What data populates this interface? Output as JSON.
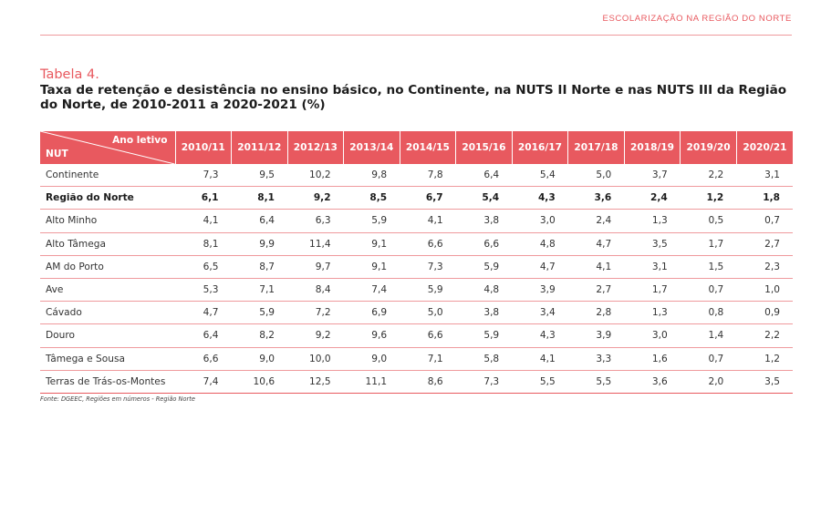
{
  "running_header": "ESCOLARIZAÇÃO NA REGIÃO DO NORTE",
  "table_number": "Tabela 4.",
  "table_title": "Taxa de retenção e desistência no ensino básico, no Continente, na NUTS II Norte e nas NUTS III da Região do Norte, de 2010-2011 a 2020-2021 (%)",
  "table": {
    "corner_top": "Ano letivo",
    "corner_bottom": "NUT",
    "years": [
      "2010/11",
      "2011/12",
      "2012/13",
      "2013/14",
      "2014/15",
      "2015/16",
      "2016/17",
      "2017/18",
      "2018/19",
      "2019/20",
      "2020/21"
    ],
    "rows": [
      {
        "nut": "Continente",
        "values": [
          "7,3",
          "9,5",
          "10,2",
          "9,8",
          "7,8",
          "6,4",
          "5,4",
          "5,0",
          "3,7",
          "2,2",
          "3,1"
        ],
        "bold": false
      },
      {
        "nut": "Região do Norte",
        "values": [
          "6,1",
          "8,1",
          "9,2",
          "8,5",
          "6,7",
          "5,4",
          "4,3",
          "3,6",
          "2,4",
          "1,2",
          "1,8"
        ],
        "bold": true
      },
      {
        "nut": "Alto Minho",
        "values": [
          "4,1",
          "6,4",
          "6,3",
          "5,9",
          "4,1",
          "3,8",
          "3,0",
          "2,4",
          "1,3",
          "0,5",
          "0,7"
        ],
        "bold": false
      },
      {
        "nut": "Alto Tâmega",
        "values": [
          "8,1",
          "9,9",
          "11,4",
          "9,1",
          "6,6",
          "6,6",
          "4,8",
          "4,7",
          "3,5",
          "1,7",
          "2,7"
        ],
        "bold": false
      },
      {
        "nut": "AM do Porto",
        "values": [
          "6,5",
          "8,7",
          "9,7",
          "9,1",
          "7,3",
          "5,9",
          "4,7",
          "4,1",
          "3,1",
          "1,5",
          "2,3"
        ],
        "bold": false
      },
      {
        "nut": "Ave",
        "values": [
          "5,3",
          "7,1",
          "8,4",
          "7,4",
          "5,9",
          "4,8",
          "3,9",
          "2,7",
          "1,7",
          "0,7",
          "1,0"
        ],
        "bold": false
      },
      {
        "nut": "Cávado",
        "values": [
          "4,7",
          "5,9",
          "7,2",
          "6,9",
          "5,0",
          "3,8",
          "3,4",
          "2,8",
          "1,3",
          "0,8",
          "0,9"
        ],
        "bold": false
      },
      {
        "nut": "Douro",
        "values": [
          "6,4",
          "8,2",
          "9,2",
          "9,6",
          "6,6",
          "5,9",
          "4,3",
          "3,9",
          "3,0",
          "1,4",
          "2,2"
        ],
        "bold": false
      },
      {
        "nut": "Tâmega e Sousa",
        "values": [
          "6,6",
          "9,0",
          "10,0",
          "9,0",
          "7,1",
          "5,8",
          "4,1",
          "3,3",
          "1,6",
          "0,7",
          "1,2"
        ],
        "bold": false
      },
      {
        "nut": "Terras de Trás-os-Montes",
        "values": [
          "7,4",
          "10,6",
          "12,5",
          "11,1",
          "8,6",
          "7,3",
          "5,5",
          "5,5",
          "3,6",
          "2,0",
          "3,5"
        ],
        "bold": false
      }
    ]
  },
  "source": "Fonte: DGEEC, Regiões em números - Região Norte"
}
